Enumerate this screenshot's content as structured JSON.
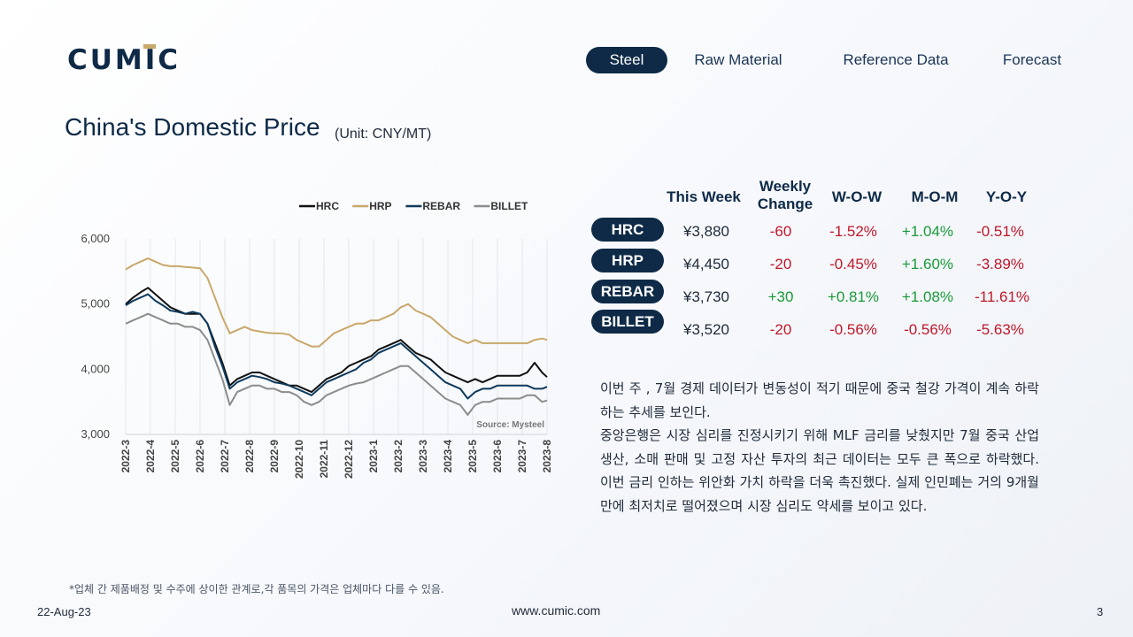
{
  "header": {
    "logo_text": "CUMIC",
    "nav": [
      {
        "label": "Steel",
        "active": true
      },
      {
        "label": "Raw Material",
        "active": false
      },
      {
        "label": "Reference Data",
        "active": false
      },
      {
        "label": "Forecast",
        "active": false
      }
    ]
  },
  "page": {
    "title": "China's Domestic Price",
    "unit": "(Unit: CNY/MT)"
  },
  "table": {
    "headers": {
      "this_week": "This Week",
      "weekly_change_1": "Weekly",
      "weekly_change_2": "Change",
      "wow": "W-O-W",
      "mom": "M-O-M",
      "yoy": "Y-O-Y"
    },
    "rows": [
      {
        "name": "HRC",
        "price": "¥3,880",
        "change": "-60",
        "wow": "-1.52%",
        "mom": "+1.04%",
        "yoy": "-0.51%"
      },
      {
        "name": "HRP",
        "price": "¥4,450",
        "change": "-20",
        "wow": "-0.45%",
        "mom": "+1.60%",
        "yoy": "-3.89%"
      },
      {
        "name": "REBAR",
        "price": "¥3,730",
        "change": "+30",
        "wow": "+0.81%",
        "mom": "+1.08%",
        "yoy": "-11.61%"
      },
      {
        "name": "BILLET",
        "price": "¥3,520",
        "change": "-20",
        "wow": "-0.56%",
        "mom": "-0.56%",
        "yoy": "-5.63%"
      }
    ],
    "colors": {
      "positive": "#1a9a3a",
      "negative": "#c0172a"
    }
  },
  "commentary": [
    "이번 주 , 7월 경제 데이터가 변동성이 적기 때문에 중국 철강 가격이 계속 하락하는 추세를 보인다.",
    "중앙은행은 시장 심리를 진정시키기 위해 MLF 금리를 낮췄지만 7월 중국 산업 생산, 소매 판매 및 고정 자산 투자의 최근 데이터는 모두 큰 폭으로 하락했다. 이번 금리 인하는 위안화 가치 하락을 더욱 촉진했다. 실제 인민폐는 거의 9개월 만에 최저치로 떨어졌으며 시장 심리도 약세를 보이고 있다."
  ],
  "footer": {
    "note": "*업체 간 제품배정 및 수주에 상이한 관계로,각 품목의 가격은 업체마다 다를 수 있음.",
    "date": "22-Aug-23",
    "website": "www.cumic.com",
    "page_number": "3"
  },
  "chart_data": {
    "type": "line",
    "title": "",
    "xlabel": "",
    "ylabel": "",
    "source": "Source: Mysteel",
    "ylim": [
      3000,
      6000
    ],
    "yticks": [
      "6,000",
      "5,000",
      "4,000",
      "3,000"
    ],
    "ytick_values": [
      6000,
      5000,
      4000,
      3000
    ],
    "grid": "vertical",
    "legend": "top",
    "categories": [
      "2022-3",
      "2022-4",
      "2022-5",
      "2022-6",
      "2022-7",
      "2022-8",
      "2022-9",
      "2022-10",
      "2022-11",
      "2022-12",
      "2023-1",
      "2023-2",
      "2023-3",
      "2023-4",
      "2023-5",
      "2023-6",
      "2023-7",
      "2023-8"
    ],
    "x": [
      0,
      0.3,
      0.6,
      0.9,
      1.2,
      1.5,
      1.8,
      2.1,
      2.4,
      2.7,
      3.0,
      3.3,
      3.6,
      3.9,
      4.2,
      4.5,
      4.8,
      5.1,
      5.4,
      5.7,
      6.0,
      6.3,
      6.6,
      6.9,
      7.2,
      7.5,
      7.8,
      8.1,
      8.4,
      8.7,
      9.0,
      9.3,
      9.6,
      9.9,
      10.2,
      10.5,
      10.8,
      11.1,
      11.4,
      11.7,
      12.0,
      12.3,
      12.6,
      12.9,
      13.2,
      13.5,
      13.8,
      14.1,
      14.4,
      14.7,
      15.0,
      15.3,
      15.6,
      15.9,
      16.2,
      16.5,
      16.8,
      17.0
    ],
    "series": [
      {
        "name": "HRC",
        "color": "#111111",
        "values": [
          5000,
          5100,
          5180,
          5250,
          5150,
          5050,
          4950,
          4900,
          4850,
          4850,
          4850,
          4700,
          4400,
          4100,
          3750,
          3850,
          3900,
          3950,
          3950,
          3900,
          3850,
          3800,
          3750,
          3750,
          3700,
          3650,
          3750,
          3850,
          3900,
          3950,
          4050,
          4100,
          4150,
          4200,
          4300,
          4350,
          4400,
          4450,
          4350,
          4250,
          4200,
          4150,
          4050,
          3950,
          3900,
          3850,
          3800,
          3850,
          3800,
          3850,
          3900,
          3900,
          3900,
          3900,
          3950,
          4100,
          3950,
          3880
        ]
      },
      {
        "name": "HRP",
        "color": "#c9a86a",
        "values": [
          5530,
          5600,
          5650,
          5700,
          5650,
          5600,
          5580,
          5580,
          5570,
          5560,
          5550,
          5400,
          5100,
          4800,
          4550,
          4600,
          4650,
          4600,
          4580,
          4560,
          4550,
          4550,
          4530,
          4450,
          4400,
          4350,
          4350,
          4450,
          4550,
          4600,
          4650,
          4700,
          4700,
          4750,
          4750,
          4800,
          4850,
          4950,
          5000,
          4900,
          4850,
          4800,
          4700,
          4600,
          4500,
          4450,
          4400,
          4450,
          4400,
          4400,
          4400,
          4400,
          4400,
          4400,
          4400,
          4450,
          4470,
          4450
        ]
      },
      {
        "name": "REBAR",
        "color": "#0e3a5c",
        "values": [
          4980,
          5050,
          5100,
          5150,
          5050,
          4980,
          4900,
          4880,
          4850,
          4880,
          4850,
          4700,
          4350,
          4050,
          3700,
          3800,
          3850,
          3900,
          3880,
          3850,
          3800,
          3780,
          3750,
          3700,
          3650,
          3600,
          3700,
          3800,
          3850,
          3900,
          3950,
          4000,
          4100,
          4150,
          4250,
          4300,
          4350,
          4400,
          4300,
          4200,
          4100,
          4000,
          3900,
          3800,
          3750,
          3700,
          3550,
          3650,
          3700,
          3700,
          3750,
          3750,
          3750,
          3750,
          3750,
          3700,
          3700,
          3730
        ]
      },
      {
        "name": "BILLET",
        "color": "#8c8c8c",
        "values": [
          4700,
          4750,
          4800,
          4850,
          4800,
          4750,
          4700,
          4700,
          4650,
          4650,
          4600,
          4450,
          4150,
          3850,
          3450,
          3650,
          3700,
          3750,
          3750,
          3700,
          3700,
          3650,
          3650,
          3600,
          3500,
          3450,
          3500,
          3600,
          3650,
          3700,
          3750,
          3780,
          3800,
          3850,
          3900,
          3950,
          4000,
          4050,
          4050,
          3950,
          3850,
          3750,
          3650,
          3550,
          3500,
          3450,
          3300,
          3450,
          3500,
          3500,
          3550,
          3550,
          3550,
          3550,
          3600,
          3600,
          3500,
          3520
        ]
      }
    ]
  }
}
